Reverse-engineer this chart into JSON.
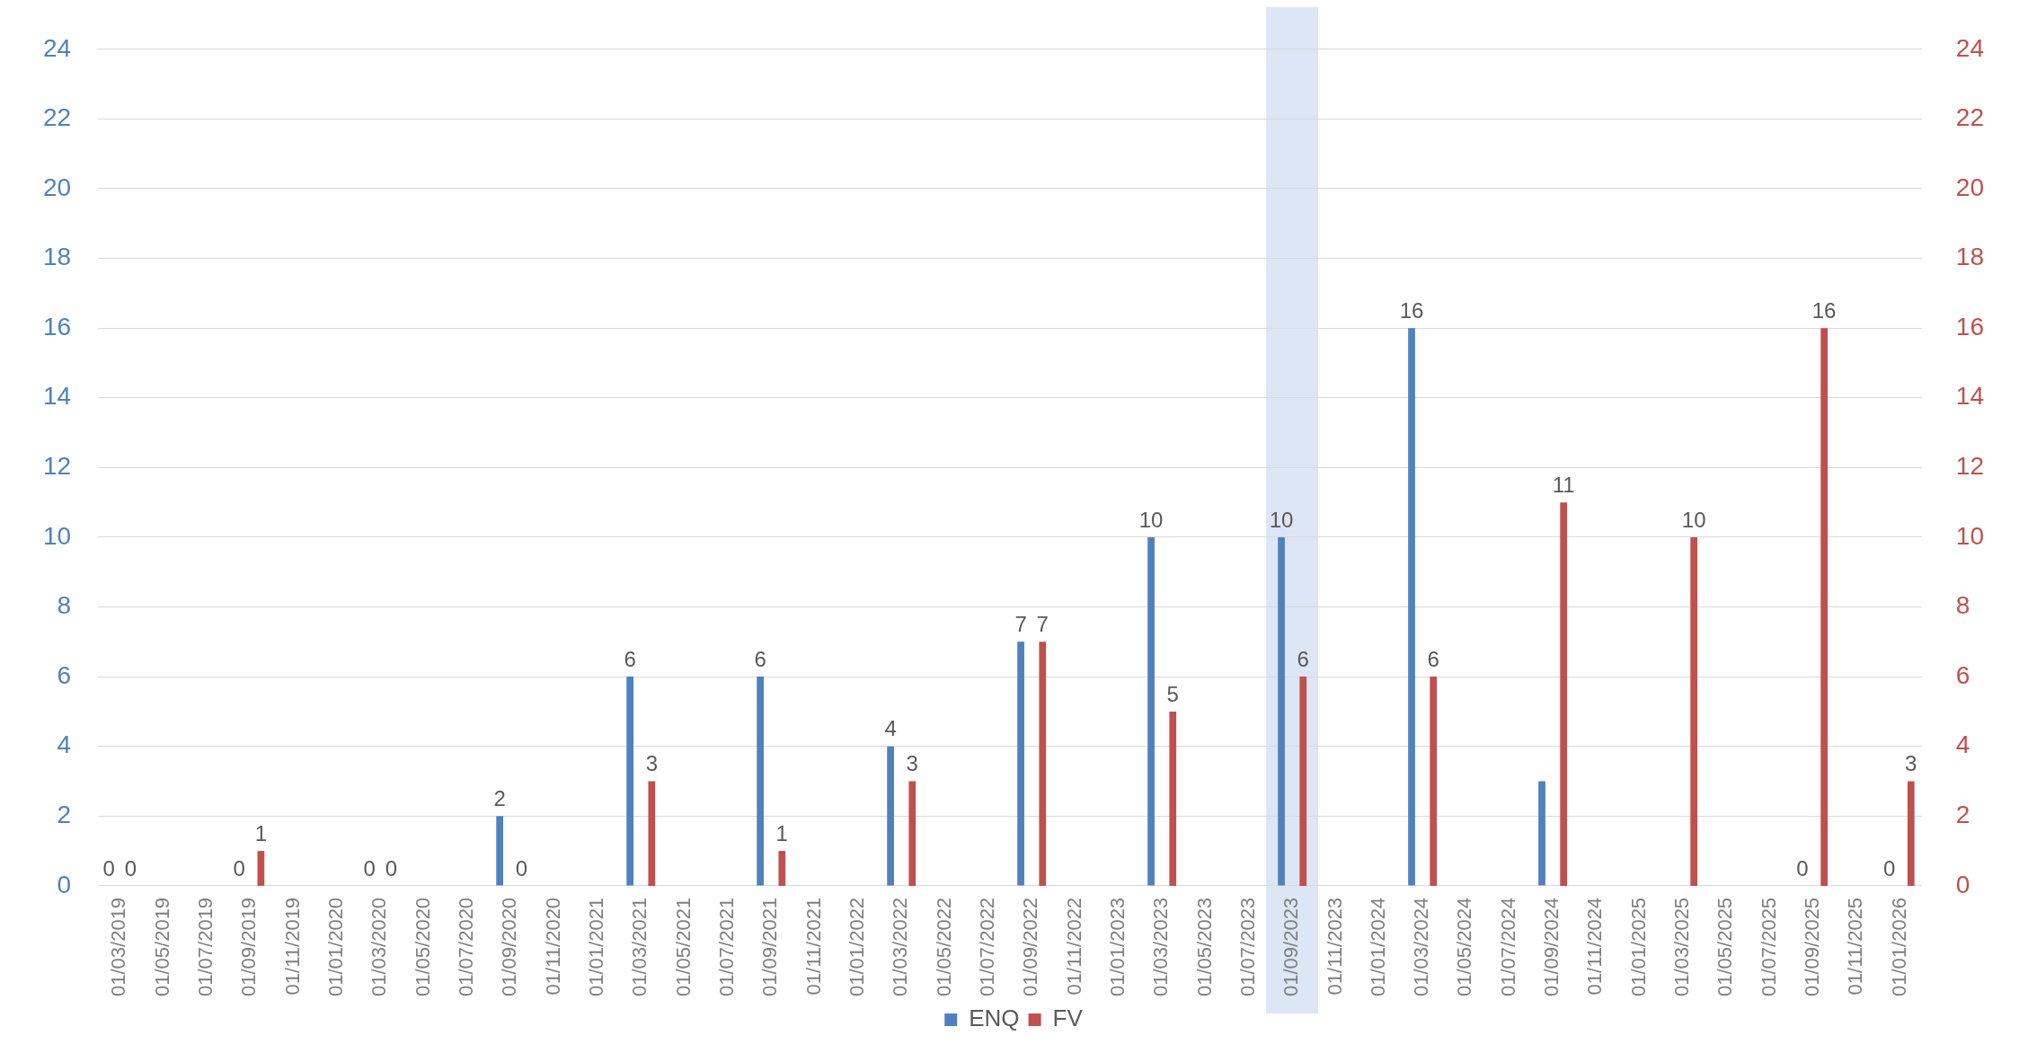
{
  "chart_data": {
    "type": "bar",
    "categories": [
      "01/03/2019",
      "01/05/2019",
      "01/07/2019",
      "01/09/2019",
      "01/11/2019",
      "01/01/2020",
      "01/03/2020",
      "01/05/2020",
      "01/07/2020",
      "01/09/2020",
      "01/11/2020",
      "01/01/2021",
      "01/03/2021",
      "01/05/2021",
      "01/07/2021",
      "01/09/2021",
      "01/11/2021",
      "01/01/2022",
      "01/03/2022",
      "01/05/2022",
      "01/07/2022",
      "01/09/2022",
      "01/11/2022",
      "01/01/2023",
      "01/03/2023",
      "01/05/2023",
      "01/07/2023",
      "01/09/2023",
      "01/11/2023",
      "01/01/2024",
      "01/03/2024",
      "01/05/2024",
      "01/07/2024",
      "01/09/2024",
      "01/11/2024",
      "01/01/2025",
      "01/03/2025",
      "01/05/2025",
      "01/07/2025",
      "01/09/2025",
      "01/11/2025",
      "01/01/2026"
    ],
    "series": [
      {
        "name": "ENQ",
        "color": "#4f81bd",
        "values": [
          0,
          null,
          null,
          0,
          null,
          null,
          0,
          null,
          null,
          2,
          null,
          null,
          6,
          null,
          null,
          6,
          null,
          null,
          4,
          null,
          null,
          7,
          null,
          null,
          10,
          null,
          null,
          10,
          null,
          null,
          16,
          null,
          null,
          3,
          null,
          null,
          null,
          null,
          null,
          0,
          null,
          0
        ],
        "value_labels": [
          "0",
          null,
          null,
          "0",
          null,
          null,
          "0",
          null,
          null,
          "2",
          null,
          null,
          "6",
          null,
          null,
          "6",
          null,
          null,
          "4",
          null,
          null,
          "7",
          null,
          null,
          "10",
          null,
          null,
          "10",
          null,
          null,
          "16",
          null,
          null,
          null,
          null,
          null,
          null,
          null,
          null,
          "0",
          null,
          "0"
        ]
      },
      {
        "name": "FV",
        "color": "#c0504d",
        "axis": "y2",
        "values": [
          0,
          null,
          null,
          1,
          null,
          null,
          0,
          null,
          null,
          0,
          null,
          null,
          3,
          null,
          null,
          1,
          null,
          null,
          3,
          null,
          null,
          7,
          null,
          null,
          5,
          null,
          null,
          6,
          null,
          null,
          6,
          null,
          null,
          11,
          null,
          null,
          10,
          null,
          null,
          16,
          null,
          3
        ],
        "value_labels": [
          "0",
          null,
          null,
          "1",
          null,
          null,
          "0",
          null,
          null,
          "0",
          null,
          null,
          "3",
          null,
          null,
          "1",
          null,
          null,
          "3",
          null,
          null,
          "7",
          null,
          null,
          "5",
          null,
          null,
          "6",
          null,
          null,
          "6",
          null,
          null,
          "11",
          null,
          null,
          "10",
          null,
          null,
          "16",
          null,
          "3"
        ]
      }
    ],
    "ylim": [
      0,
      24
    ],
    "yticks": [
      0,
      2,
      4,
      6,
      8,
      10,
      12,
      14,
      16,
      18,
      20,
      22,
      24
    ],
    "y2lim": [
      0,
      24
    ],
    "y2ticks": [
      0,
      2,
      4,
      6,
      8,
      10,
      12,
      14,
      16,
      18,
      20,
      22,
      24
    ],
    "bands": [
      {
        "axis": "x",
        "from": "01/09/2023",
        "to": "01/09/2023",
        "color": "#dce6f5"
      }
    ],
    "grid": "y",
    "legend": "bottom"
  }
}
